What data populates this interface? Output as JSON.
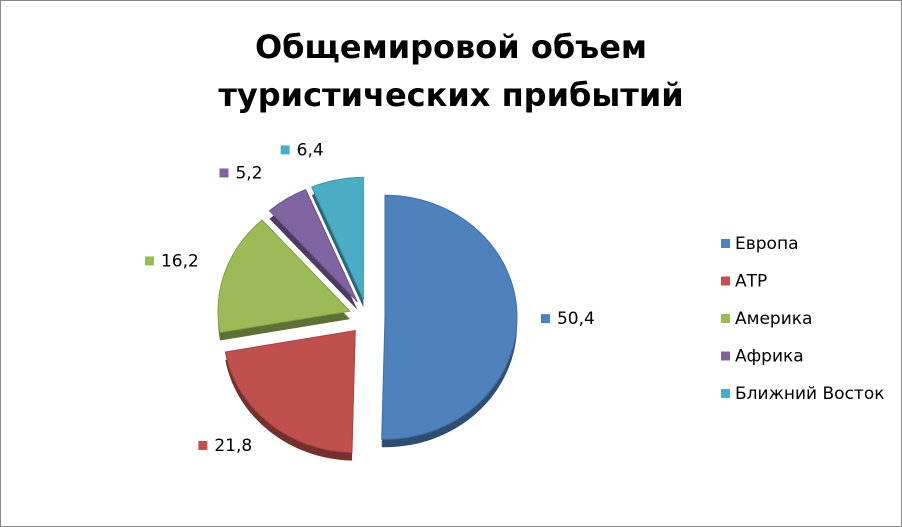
{
  "chart_data": {
    "type": "pie",
    "title": "Общемировой объем туристических прибытий",
    "categories": [
      "Европа",
      "АТР",
      "Америка",
      "Африка",
      "Ближний Восток"
    ],
    "values": [
      50.4,
      21.8,
      16.2,
      5.2,
      6.4
    ],
    "value_labels": [
      "50,4",
      "21,8",
      "16,2",
      "5,2",
      "6,4"
    ],
    "colors": [
      "#4F81BD",
      "#C0504D",
      "#9BBB59",
      "#8064A2",
      "#4BACC6"
    ],
    "legend": "right"
  }
}
